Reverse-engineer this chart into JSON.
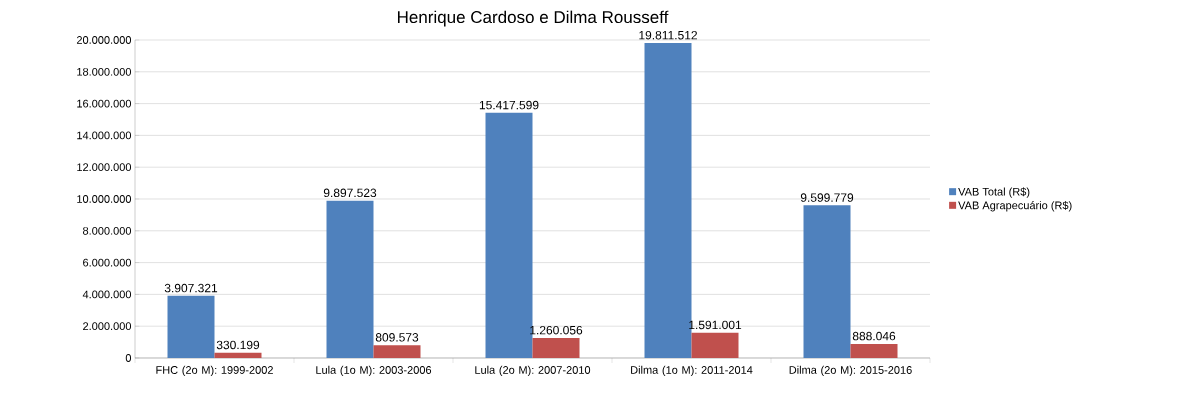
{
  "chart_data": {
    "type": "bar",
    "title": "Henrique Cardoso e Dilma Rousseff",
    "categories": [
      "FHC (2o M): 1999-2002",
      "Lula (1o M): 2003-2006",
      "Lula (2o M): 2007-2010",
      "Dilma (1o M): 2011-2014",
      "Dilma (2o M): 2015-2016"
    ],
    "series": [
      {
        "name": "VAB Total (R$)",
        "color": "#4f81bd",
        "values": [
          3907321,
          9897523,
          15417599,
          19811512,
          9599779
        ],
        "value_labels": [
          "3.907.321",
          "9.897.523",
          "15.417.599",
          "19.811.512",
          "9.599.779"
        ]
      },
      {
        "name": "VAB Agrapecuário (R$)",
        "color": "#c0504d",
        "values": [
          330199,
          809573,
          1260056,
          1591001,
          888046
        ],
        "value_labels": [
          "330.199",
          "809.573",
          "1.260.056",
          "1.591.001",
          "888.046"
        ]
      }
    ],
    "ylim": [
      0,
      20000000
    ],
    "yticks": [
      {
        "value": 0,
        "label": "0"
      },
      {
        "value": 2000000,
        "label": "2.000.000"
      },
      {
        "value": 4000000,
        "label": "4.000.000"
      },
      {
        "value": 6000000,
        "label": "6.000.000"
      },
      {
        "value": 8000000,
        "label": "8.000.000"
      },
      {
        "value": 10000000,
        "label": "10.000.000"
      },
      {
        "value": 12000000,
        "label": "12.000.000"
      },
      {
        "value": 14000000,
        "label": "14.000.000"
      },
      {
        "value": 16000000,
        "label": "16.000.000"
      },
      {
        "value": 18000000,
        "label": "18.000.000"
      },
      {
        "value": 20000000,
        "label": "20.000.000"
      }
    ],
    "grid": "y",
    "legend": "right"
  }
}
